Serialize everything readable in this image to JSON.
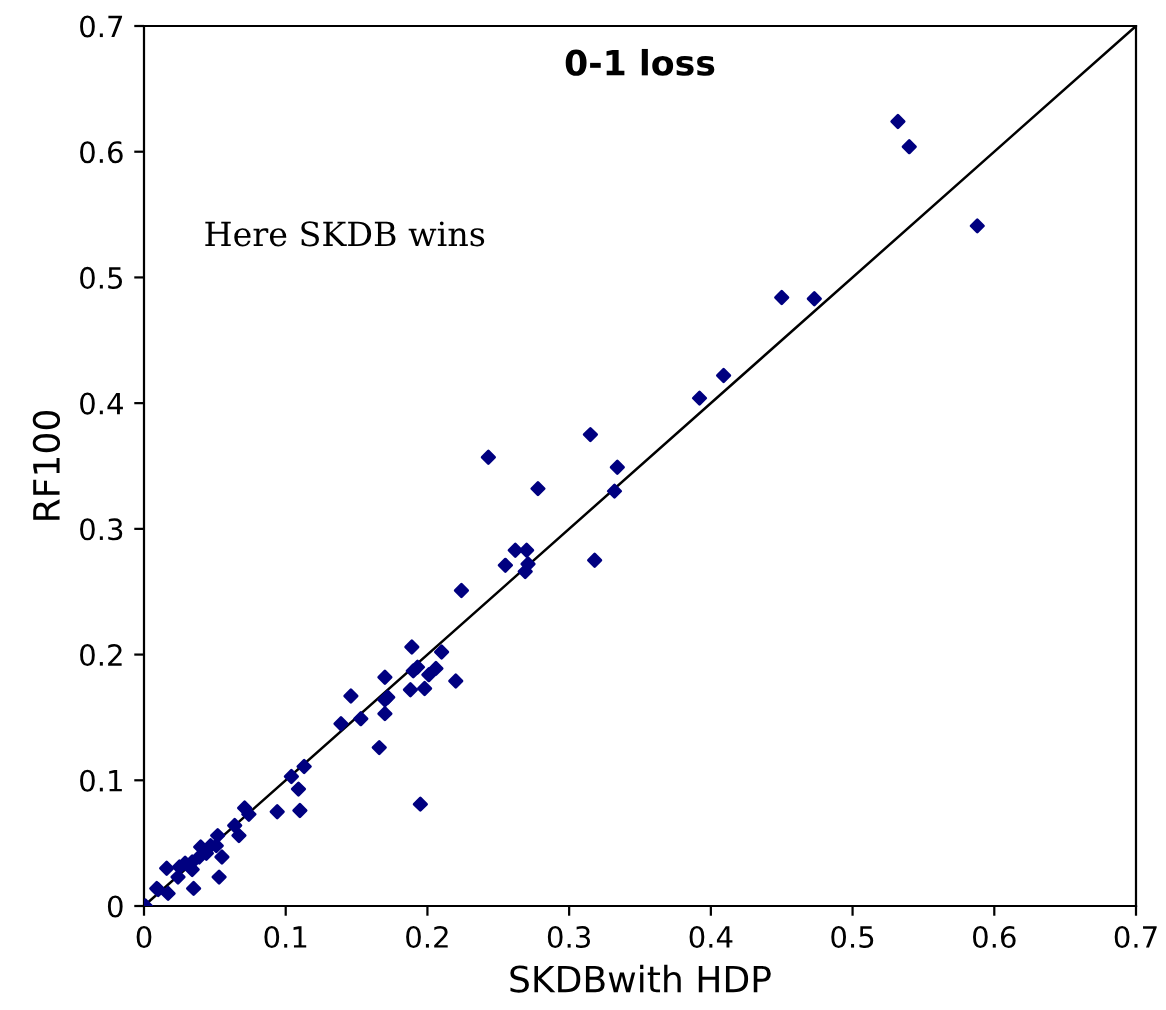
{
  "chart_data": {
    "type": "scatter",
    "title": "0-1 loss",
    "xlabel": "SKDBwith HDP",
    "ylabel": "RF100",
    "annotations": [
      "Here SKDB wins"
    ],
    "xlim": [
      0,
      0.7
    ],
    "ylim": [
      0,
      0.7
    ],
    "xticks": [
      0,
      0.1,
      0.2,
      0.3,
      0.4,
      0.5,
      0.6,
      0.7
    ],
    "yticks": [
      0,
      0.1,
      0.2,
      0.3,
      0.4,
      0.5,
      0.6,
      0.7
    ],
    "grid": false,
    "marker": "diamond",
    "series": [
      {
        "color": "#000080",
        "x": [
          0.001,
          0.009,
          0.01,
          0.017,
          0.016,
          0.024,
          0.025,
          0.029,
          0.034,
          0.034,
          0.035,
          0.039,
          0.04,
          0.044,
          0.047,
          0.051,
          0.052,
          0.053,
          0.055,
          0.064,
          0.067,
          0.071,
          0.074,
          0.094,
          0.104,
          0.109,
          0.11,
          0.113,
          0.139,
          0.146,
          0.153,
          0.166,
          0.17,
          0.17,
          0.172,
          0.17,
          0.189,
          0.188,
          0.19,
          0.193,
          0.195,
          0.198,
          0.201,
          0.206,
          0.21,
          0.22,
          0.224,
          0.243,
          0.255,
          0.262,
          0.27,
          0.271,
          0.269,
          0.278,
          0.315,
          0.318,
          0.332,
          0.334,
          0.392,
          0.409,
          0.45,
          0.473,
          0.532,
          0.54,
          0.588
        ],
        "values": [
          0.0,
          0.014,
          0.013,
          0.01,
          0.03,
          0.023,
          0.031,
          0.034,
          0.035,
          0.029,
          0.014,
          0.039,
          0.047,
          0.042,
          0.048,
          0.048,
          0.056,
          0.023,
          0.039,
          0.064,
          0.056,
          0.078,
          0.073,
          0.075,
          0.103,
          0.093,
          0.076,
          0.111,
          0.145,
          0.167,
          0.149,
          0.126,
          0.153,
          0.164,
          0.166,
          0.182,
          0.206,
          0.172,
          0.187,
          0.19,
          0.081,
          0.173,
          0.184,
          0.189,
          0.202,
          0.179,
          0.251,
          0.357,
          0.271,
          0.283,
          0.283,
          0.272,
          0.266,
          0.332,
          0.375,
          0.275,
          0.33,
          0.349,
          0.404,
          0.422,
          0.484,
          0.483,
          0.624,
          0.604,
          0.541
        ]
      },
      {
        "type": "line",
        "color": "#000000",
        "x": [
          0,
          0.7
        ],
        "values": [
          0,
          0.7
        ],
        "marker": "none",
        "line_style": "solid"
      }
    ]
  }
}
